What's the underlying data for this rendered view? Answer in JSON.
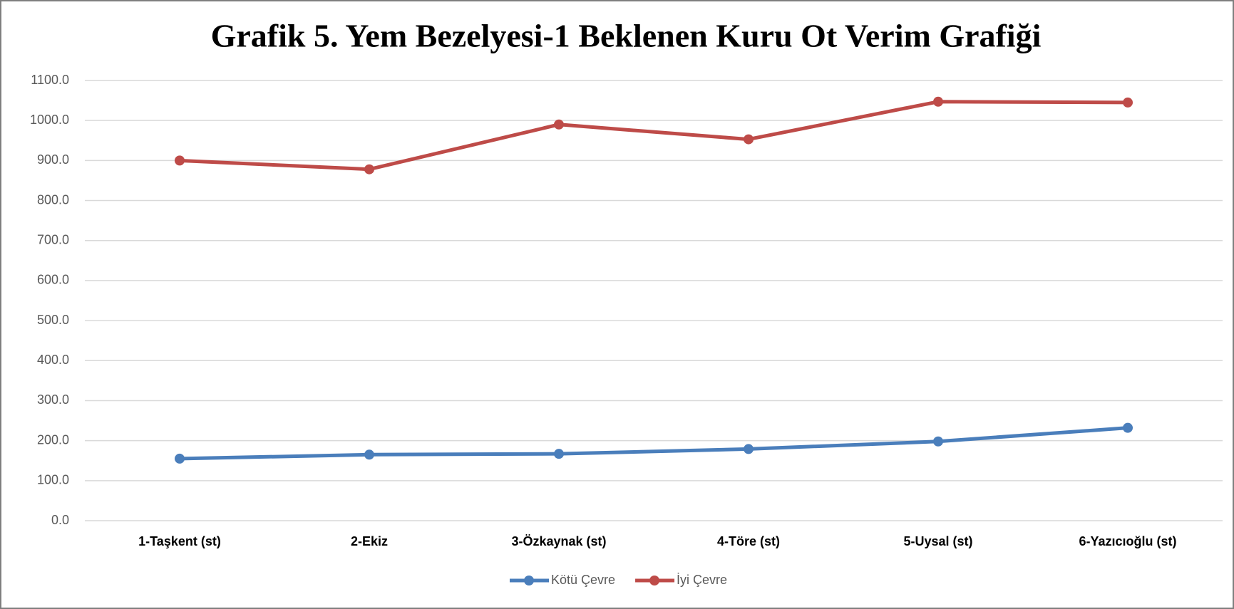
{
  "chart_data": {
    "type": "line",
    "title": "Grafik 5. Yem Bezelyesi-1 Beklenen Kuru Ot Verim Grafiği",
    "categories": [
      "1-Taşkent (st)",
      "2-Ekiz",
      "3-Özkaynak (st)",
      "4-Töre (st)",
      "5-Uysal (st)",
      "6-Yazıcıoğlu (st)"
    ],
    "series": [
      {
        "name": "Kötü Çevre",
        "color": "#4a7ebb",
        "values": [
          155,
          165,
          167,
          179,
          198,
          232
        ]
      },
      {
        "name": "İyi Çevre",
        "color": "#be4b48",
        "values": [
          900,
          878,
          990,
          953,
          1047,
          1045
        ]
      }
    ],
    "ylim": [
      0,
      1100
    ],
    "yticks": [
      {
        "value": 0,
        "label": "0.0"
      },
      {
        "value": 100,
        "label": "100.0"
      },
      {
        "value": 200,
        "label": "200.0"
      },
      {
        "value": 300,
        "label": "300.0"
      },
      {
        "value": 400,
        "label": "400.0"
      },
      {
        "value": 500,
        "label": "500.0"
      },
      {
        "value": 600,
        "label": "600.0"
      },
      {
        "value": 700,
        "label": "700.0"
      },
      {
        "value": 800,
        "label": "800.0"
      },
      {
        "value": 900,
        "label": "900.0"
      },
      {
        "value": 1000,
        "label": "1000.0"
      },
      {
        "value": 1100,
        "label": "1100.0"
      }
    ],
    "grid": true,
    "legend": "bottom"
  }
}
